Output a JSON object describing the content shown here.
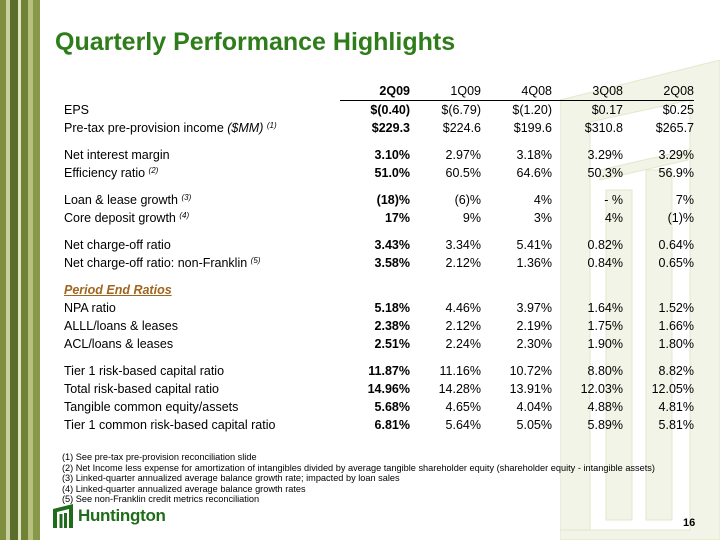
{
  "title": "Quarterly Performance Highlights",
  "columns": [
    "2Q09",
    "1Q09",
    "4Q08",
    "3Q08",
    "2Q08"
  ],
  "rows": [
    {
      "label": "EPS",
      "values": [
        "$(0.40)",
        "$(6.79)",
        "$(1.20)",
        "$0.17",
        "$0.25"
      ]
    },
    {
      "label": "Pre-tax pre-provision income ",
      "label_italic": "($MM)",
      "note": "(1)",
      "values": [
        "$229.3",
        "$224.6",
        "$199.6",
        "$310.8",
        "$265.7"
      ]
    },
    {
      "gap": true
    },
    {
      "label": "Net interest margin",
      "values": [
        "3.10%",
        "2.97%",
        "3.18%",
        "3.29%",
        "3.29%"
      ]
    },
    {
      "label": "Efficiency ratio ",
      "note": "(2)",
      "values": [
        "51.0%",
        "60.5%",
        "64.6%",
        "50.3%",
        "56.9%"
      ]
    },
    {
      "gap": true
    },
    {
      "label": "Loan & lease growth ",
      "note": "(3)",
      "values": [
        "(18)%",
        "(6)%",
        "4%",
        "- %",
        "7%"
      ]
    },
    {
      "label": "Core deposit growth ",
      "note": "(4)",
      "values": [
        "17%",
        "9%",
        "3%",
        "4%",
        "(1)%"
      ]
    },
    {
      "gap": true
    },
    {
      "label": "Net charge-off ratio",
      "values": [
        "3.43%",
        "3.34%",
        "5.41%",
        "0.82%",
        "0.64%"
      ]
    },
    {
      "label": "Net charge-off ratio: non-Franklin ",
      "note": "(5)",
      "values": [
        "3.58%",
        "2.12%",
        "1.36%",
        "0.84%",
        "0.65%"
      ]
    },
    {
      "gap": true
    },
    {
      "section": "Period End Ratios"
    },
    {
      "label": "NPA  ratio",
      "values": [
        "5.18%",
        "4.46%",
        "3.97%",
        "1.64%",
        "1.52%"
      ]
    },
    {
      "label": "ALLL/loans & leases",
      "values": [
        "2.38%",
        "2.12%",
        "2.19%",
        "1.75%",
        "1.66%"
      ]
    },
    {
      "label": "ACL/loans & leases",
      "values": [
        "2.51%",
        "2.24%",
        "2.30%",
        "1.90%",
        "1.80%"
      ]
    },
    {
      "gap": true
    },
    {
      "label": "Tier 1 risk-based capital ratio",
      "values": [
        "11.87%",
        "11.16%",
        "10.72%",
        "8.80%",
        "8.82%"
      ]
    },
    {
      "label": "Total risk-based capital ratio",
      "values": [
        "14.96%",
        "14.28%",
        "13.91%",
        "12.03%",
        "12.05%"
      ]
    },
    {
      "label": "Tangible common equity/assets",
      "values": [
        "5.68%",
        "4.65%",
        "4.04%",
        "4.88%",
        "4.81%"
      ]
    },
    {
      "label": "Tier 1 common risk-based capital ratio",
      "values": [
        "6.81%",
        "5.64%",
        "5.05%",
        "5.89%",
        "5.81%"
      ]
    }
  ],
  "footnotes": [
    "(1) See pre-tax pre-provision reconciliation slide",
    "(2) Net Income less expense for amortization of intangibles divided by average tangible shareholder equity (shareholder equity - intangible assets)",
    "(3) Linked-quarter annualized average balance growth rate; impacted by loan sales",
    "(4) Linked-quarter annualized average balance growth rates",
    "(5) See non-Franklin credit metrics reconciliation"
  ],
  "brand": {
    "name": "Huntington",
    "color": "#1f6d1a",
    "title_color": "#2e7d1a"
  },
  "page_number": "16"
}
